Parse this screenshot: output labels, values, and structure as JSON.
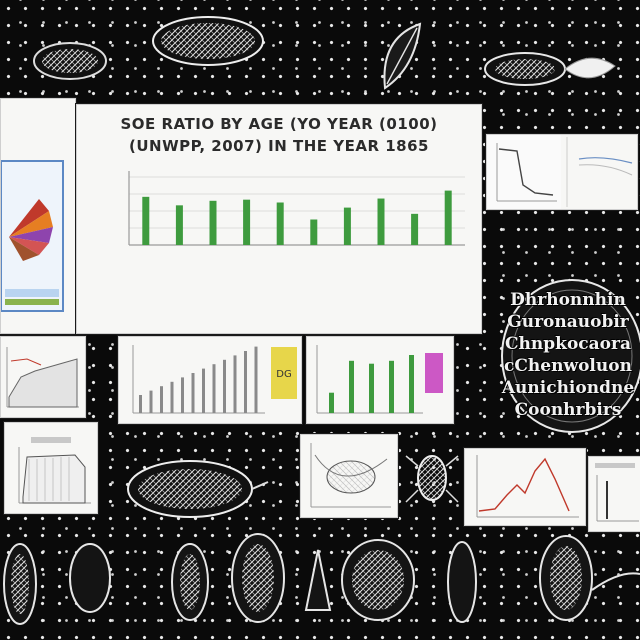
{
  "main_chart": {
    "title_line1": "SOE RATIO BY AGE (YO YEAR (0100)",
    "title_line2": "(UNWPP, 2007) IN THE YEAR 1865",
    "chart_data": {
      "type": "bar",
      "title": "SOE RATIO BY AGE (YO YEAR (0100) (UNWPP, 2007) IN THE YEAR 1865",
      "categories": [
        "",
        "",
        "",
        "",
        "",
        "",
        "",
        "",
        "",
        ""
      ],
      "values": [
        0.85,
        0.7,
        0.78,
        0.8,
        0.75,
        0.45,
        0.66,
        0.82,
        0.55,
        0.96
      ],
      "ylim": [
        0,
        1.2
      ],
      "grid": true,
      "colors": {
        "bar": "#3e9b3e",
        "axis": "#9a9a9a",
        "grid": "#dcdcdc"
      }
    }
  },
  "globe": {
    "lines": [
      "Dhrhonnhin",
      "Guronauobir",
      "Chnpkocaora",
      "cChenwoluon",
      "Aunichiondne",
      "Coonhrbirs"
    ]
  },
  "small_card_label": "DG",
  "colors": {
    "background": "#0a0a0a",
    "dots": "#e8e8e8",
    "card": "#f7f7f5",
    "bar_green": "#3e9b3e",
    "line_red": "#c0392b",
    "yellow": "#e7d64a",
    "magenta": "#c43cbc"
  }
}
